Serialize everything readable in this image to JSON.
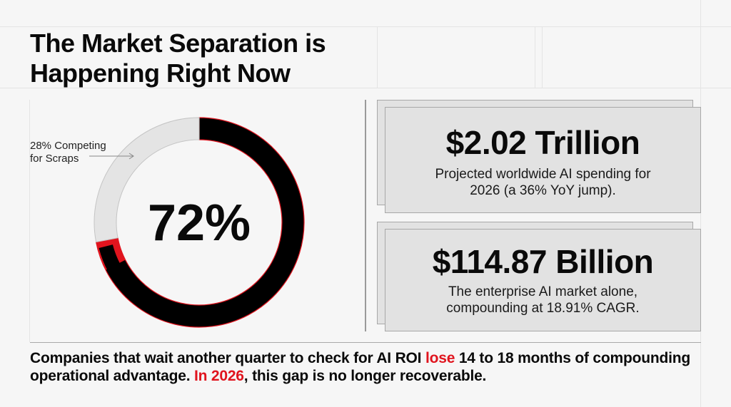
{
  "title_line1": "The Market Separation is",
  "title_line2": "Happening Right Now",
  "chart_data": {
    "type": "pie",
    "style": "donut",
    "center_label": "72%",
    "slices": [
      {
        "label": "72%",
        "value": 72,
        "color": "#000000"
      },
      {
        "label": "28% Competing for Scraps",
        "value": 28,
        "color": "#e4e4e4"
      }
    ],
    "accent_color": "#e0141e",
    "annotation_line1": "28% Competing",
    "annotation_line2": "for Scraps"
  },
  "stats": [
    {
      "value": "$2.02 Trillion",
      "desc_line1": "Projected worldwide AI spending for",
      "desc_line2": "2026 (a 36% YoY jump)."
    },
    {
      "value": "$114.87 Billion",
      "desc_line1": "The enterprise AI market alone,",
      "desc_line2": "compounding at 18.91% CAGR."
    }
  ],
  "footer": {
    "part1": "Companies that wait another quarter to check for AI ROI ",
    "highlight1": "lose",
    "part2": " 14 to 18 months of compounding operational advantage. ",
    "highlight2": "In 2026",
    "part3": ", this gap is no longer recoverable."
  },
  "colors": {
    "accent": "#e0141e",
    "card": "#e2e2e2",
    "background": "#f6f6f6"
  }
}
